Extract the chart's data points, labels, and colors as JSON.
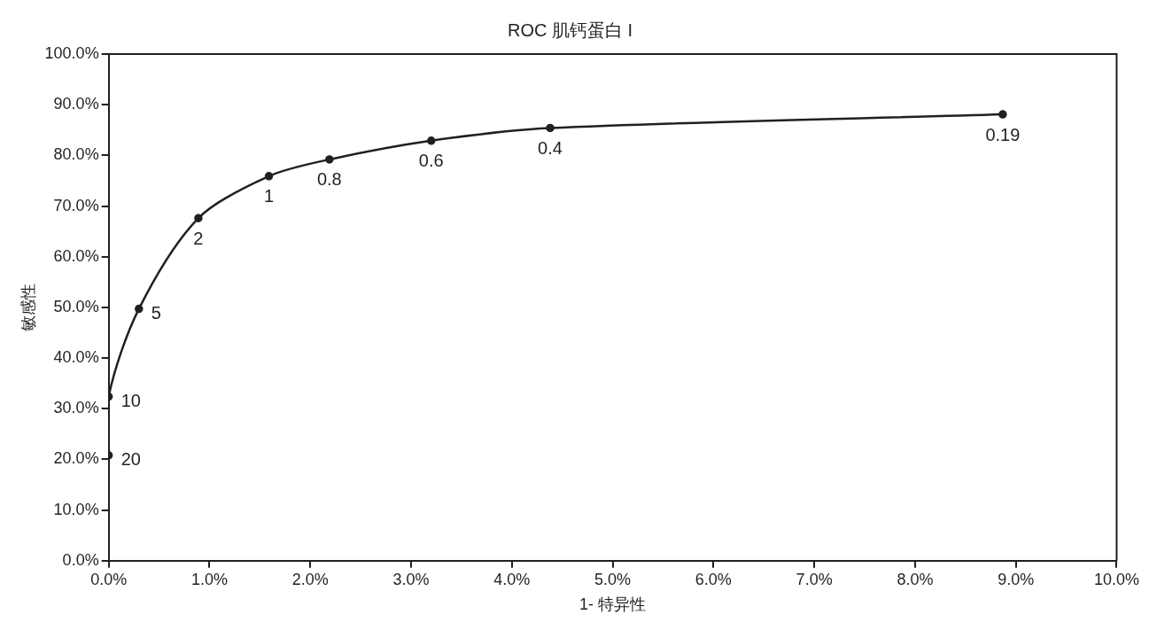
{
  "chart_data": {
    "type": "line",
    "title": "ROC 肌钙蛋白 I",
    "xlabel": "1- 特异性",
    "ylabel": "敏感性",
    "x": [
      0,
      0,
      0.3,
      0.89,
      1.59,
      2.19,
      3.2,
      4.38,
      8.87
    ],
    "series": [
      {
        "color": "#231f20",
        "values": [
          20.8,
          32.4,
          49.7,
          67.6,
          75.9,
          79.2,
          82.9,
          85.4,
          88.1
        ]
      }
    ],
    "xlim": [
      0,
      10
    ],
    "ylim": [
      0,
      100
    ],
    "xticks": [
      {
        "value": 0,
        "label": "0.0%"
      },
      {
        "value": 1,
        "label": "1.0%"
      },
      {
        "value": 2,
        "label": "2.0%"
      },
      {
        "value": 3,
        "label": "3.0%"
      },
      {
        "value": 4,
        "label": "4.0%"
      },
      {
        "value": 5,
        "label": "5.0%"
      },
      {
        "value": 6,
        "label": "6.0%"
      },
      {
        "value": 7,
        "label": "7.0%"
      },
      {
        "value": 8,
        "label": "8.0%"
      },
      {
        "value": 9,
        "label": "9.0%"
      },
      {
        "value": 10,
        "label": "10.0%"
      }
    ],
    "yticks": [
      {
        "value": 0,
        "label": "0.0%"
      },
      {
        "value": 10,
        "label": "10.0%"
      },
      {
        "value": 20,
        "label": "20.0%"
      },
      {
        "value": 30,
        "label": "30.0%"
      },
      {
        "value": 40,
        "label": "40.0%"
      },
      {
        "value": 50,
        "label": "50.0%"
      },
      {
        "value": 60,
        "label": "60.0%"
      },
      {
        "value": 70,
        "label": "70.0%"
      },
      {
        "value": 80,
        "label": "80.0%"
      },
      {
        "value": 90,
        "label": "90.0%"
      },
      {
        "value": 100,
        "label": "100.0%"
      }
    ],
    "annotations": [
      {
        "text": "20",
        "x": 0,
        "y": 20.8
      },
      {
        "text": "10",
        "x": 0,
        "y": 32.4
      },
      {
        "text": "5",
        "x": 0.3,
        "y": 49.7
      },
      {
        "text": "2",
        "x": 0.89,
        "y": 67.6
      },
      {
        "text": "1",
        "x": 1.59,
        "y": 75.9
      },
      {
        "text": "0.8",
        "x": 2.19,
        "y": 79.2
      },
      {
        "text": "0.6",
        "x": 3.2,
        "y": 82.9
      },
      {
        "text": "0.4",
        "x": 4.38,
        "y": 85.4
      },
      {
        "text": "0.19",
        "x": 8.87,
        "y": 88.1
      }
    ],
    "grid": false,
    "legend": false,
    "marker": "circle",
    "line_style": "solid"
  }
}
